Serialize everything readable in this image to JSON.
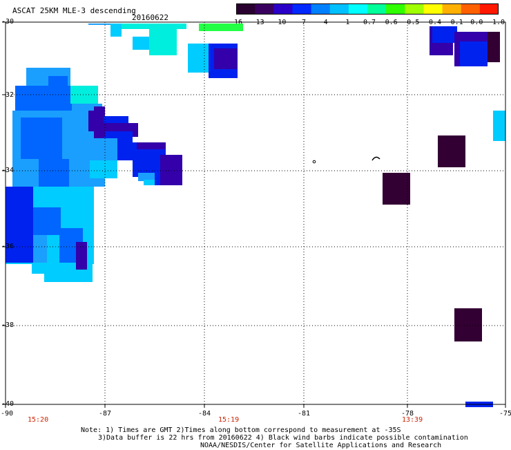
{
  "header": {
    "title": "ASCAT 25KM MLE-3 descending",
    "date": "20160622"
  },
  "colorbar": {
    "labels": [
      "-16",
      "-13",
      "-10",
      "-7",
      "-4",
      "-1",
      "-0.7",
      "-0.6",
      "-0.5",
      "-0.4",
      "-0.1",
      "0.0",
      "1.0"
    ],
    "colors": [
      "#2a0030",
      "#3a0060",
      "#2a00c8",
      "#0028ff",
      "#0080ff",
      "#00c0ff",
      "#00ffff",
      "#00ff9a",
      "#30ff00",
      "#a0ff00",
      "#ffff00",
      "#ffb000",
      "#ff6000",
      "#ff1800"
    ]
  },
  "axes": {
    "lat_labels": [
      "-30",
      "-32",
      "-34",
      "-36",
      "-38",
      "-40"
    ],
    "lon_labels": [
      "-90",
      "-87",
      "-84",
      "-81",
      "-78",
      "-75"
    ]
  },
  "times": [
    "15:20",
    "15:19",
    "13:39"
  ],
  "notes": {
    "line1": "Note: 1) Times are GMT 2)Times along bottom correspond to measurement at -35S",
    "line2": "3)Data buffer is 22 hrs from 20160622 4) Black wind barbs indicate possible contamination",
    "line3": "NOAA/NESDIS/Center for Satellite Applications and Research"
  },
  "colors": {
    "c_dark": "#330033",
    "c_indigo": "#3300aa",
    "c_blue": "#0022ee",
    "c_mid": "#0066ff",
    "c_sky": "#1a9fff",
    "c_cyan": "#00ccff",
    "c_aqua": "#00eedd",
    "c_green": "#22ff44"
  }
}
